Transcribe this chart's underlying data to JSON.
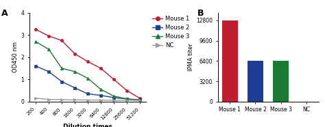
{
  "panel_A": {
    "x_labels": [
      200,
      400,
      800,
      1600,
      3200,
      6400,
      12800,
      25600,
      51200
    ],
    "mouse1": [
      3.25,
      2.95,
      2.75,
      2.15,
      1.8,
      1.5,
      1.0,
      0.5,
      0.15
    ],
    "mouse2": [
      1.6,
      1.35,
      0.9,
      0.62,
      0.35,
      0.28,
      0.18,
      0.12,
      0.08
    ],
    "mouse3": [
      2.7,
      2.35,
      1.5,
      1.35,
      1.05,
      0.55,
      0.25,
      0.12,
      0.06
    ],
    "nc": [
      0.15,
      0.1,
      0.09,
      0.08,
      0.07,
      0.07,
      0.06,
      0.06,
      0.05
    ],
    "mouse1_color": "#be1e2d",
    "mouse2_color": "#1f3c96",
    "mouse3_color": "#1a7a34",
    "nc_color": "#999999",
    "ylabel": "OD450 nm",
    "xlabel": "Dilution times",
    "ylim": [
      0,
      4
    ],
    "yticks": [
      0,
      1,
      2,
      3,
      4
    ],
    "panel_label": "A"
  },
  "panel_B": {
    "categories": [
      "Mouse 1",
      "Mouse 2",
      "Mouse 3",
      "NC"
    ],
    "values": [
      12800,
      6400,
      6400,
      0
    ],
    "colors": [
      "#be1e2d",
      "#1f3c96",
      "#1a7a34",
      "#ffffff"
    ],
    "ylabel": "IPMA titer",
    "ylim": [
      0,
      14000
    ],
    "yticks": [
      0,
      3200,
      6400,
      9600,
      12800
    ],
    "panel_label": "B"
  },
  "background_color": "#ffffff"
}
